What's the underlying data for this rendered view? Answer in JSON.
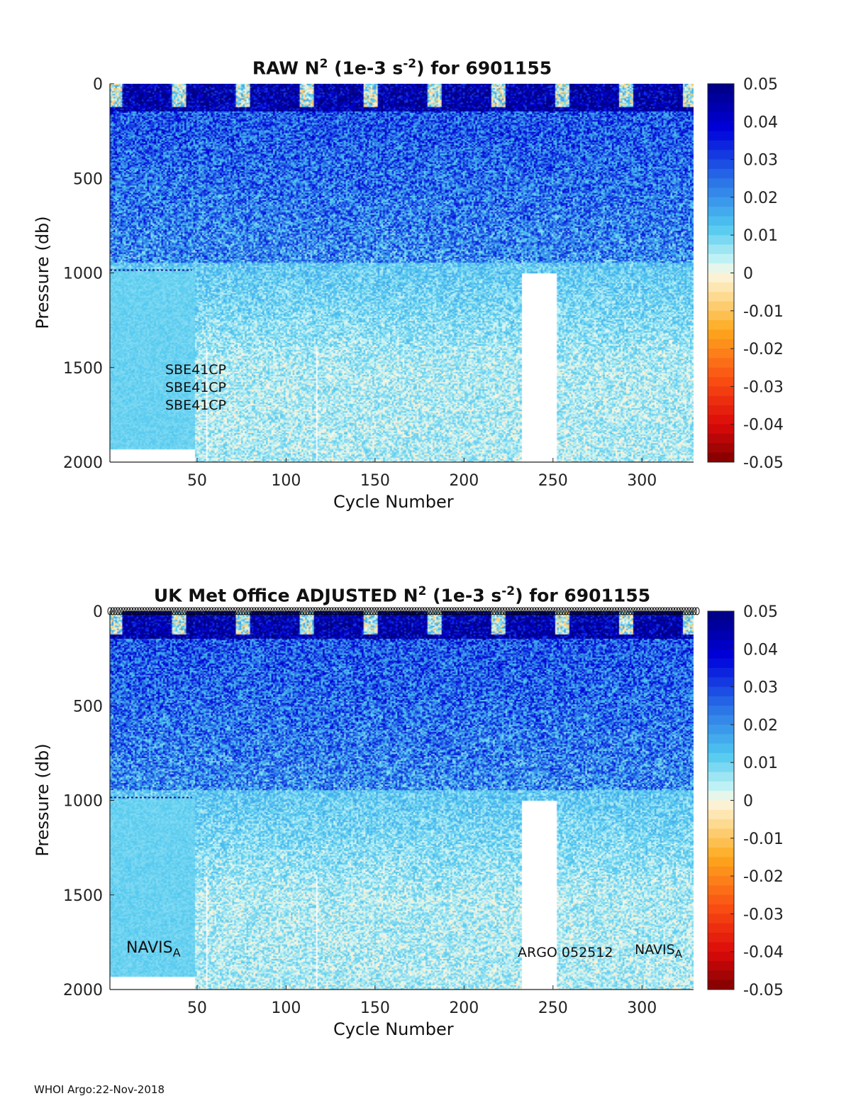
{
  "footer": "WHOI Argo:22-Nov-2018",
  "charts": [
    {
      "title_main": "RAW N",
      "title_sup": "2",
      "title_unit_pre": " (1e-3 s",
      "title_unit_sup": "-2",
      "title_unit_post": ") for 6901155",
      "xlabel": "Cycle Number",
      "ylabel": "Pressure (db)",
      "annotations": [
        "SBE41CP",
        "SBE41CP",
        "SBE41CP"
      ]
    },
    {
      "title_main": "UK Met Office  ADJUSTED N",
      "title_sup": "2",
      "title_unit_pre": " (1e-3 s",
      "title_unit_sup": "-2",
      "title_unit_post": ") for 6901155",
      "xlabel": "Cycle Number",
      "ylabel": "Pressure (db)",
      "annotations": [
        "NAVIS",
        "A",
        "ARGO 052512",
        "NAVIS",
        "A"
      ]
    }
  ],
  "chart_data": [
    {
      "type": "heatmap",
      "x_ticks": [
        50,
        100,
        150,
        200,
        250,
        300
      ],
      "y_ticks": [
        0,
        500,
        1000,
        1500,
        2000
      ],
      "xlim": [
        1,
        329
      ],
      "ylim": [
        0,
        2000
      ],
      "y_reversed": true,
      "colorbar": {
        "ticks": [
          "0.05",
          "0.04",
          "0.03",
          "0.02",
          "0.01",
          "0",
          "-0.01",
          "-0.02",
          "-0.03",
          "-0.04",
          "-0.05"
        ],
        "range": [
          -0.05,
          0.05
        ],
        "colormap": "jet (reversed)"
      },
      "description_of_field": {
        "near_surface_0_150db": 0.045,
        "mid_200_900db": 0.02,
        "deep_1000_2000db": 0.005,
        "cycles_1_48_below_1000db": 0.01,
        "gaps_cycles": [
          55,
          117,
          233,
          234,
          235,
          236,
          237,
          238,
          239,
          240,
          241,
          242,
          243,
          244,
          245,
          246,
          247,
          248,
          249,
          250,
          251,
          252
        ]
      }
    },
    {
      "type": "heatmap",
      "x_ticks": [
        50,
        100,
        150,
        200,
        250,
        300
      ],
      "y_ticks": [
        0,
        500,
        1000,
        1500,
        2000
      ],
      "xlim": [
        1,
        329
      ],
      "ylim": [
        0,
        2000
      ],
      "y_reversed": true,
      "colorbar": {
        "ticks": [
          "0.05",
          "0.04",
          "0.03",
          "0.02",
          "0.01",
          "0",
          "-0.01",
          "-0.02",
          "-0.03",
          "-0.04",
          "-0.05"
        ],
        "range": [
          -0.05,
          0.05
        ],
        "colormap": "jet (reversed)"
      },
      "description_of_field": {
        "near_surface_0_150db": 0.045,
        "mid_200_900db": 0.02,
        "deep_1000_2000db": 0.005,
        "cycles_1_48_below_1000db": 0.01,
        "gaps_cycles": [
          55,
          117,
          233,
          234,
          235,
          236,
          237,
          238,
          239,
          240,
          241,
          242,
          243,
          244,
          245,
          246,
          247,
          248,
          249,
          250,
          251,
          252
        ]
      }
    }
  ]
}
